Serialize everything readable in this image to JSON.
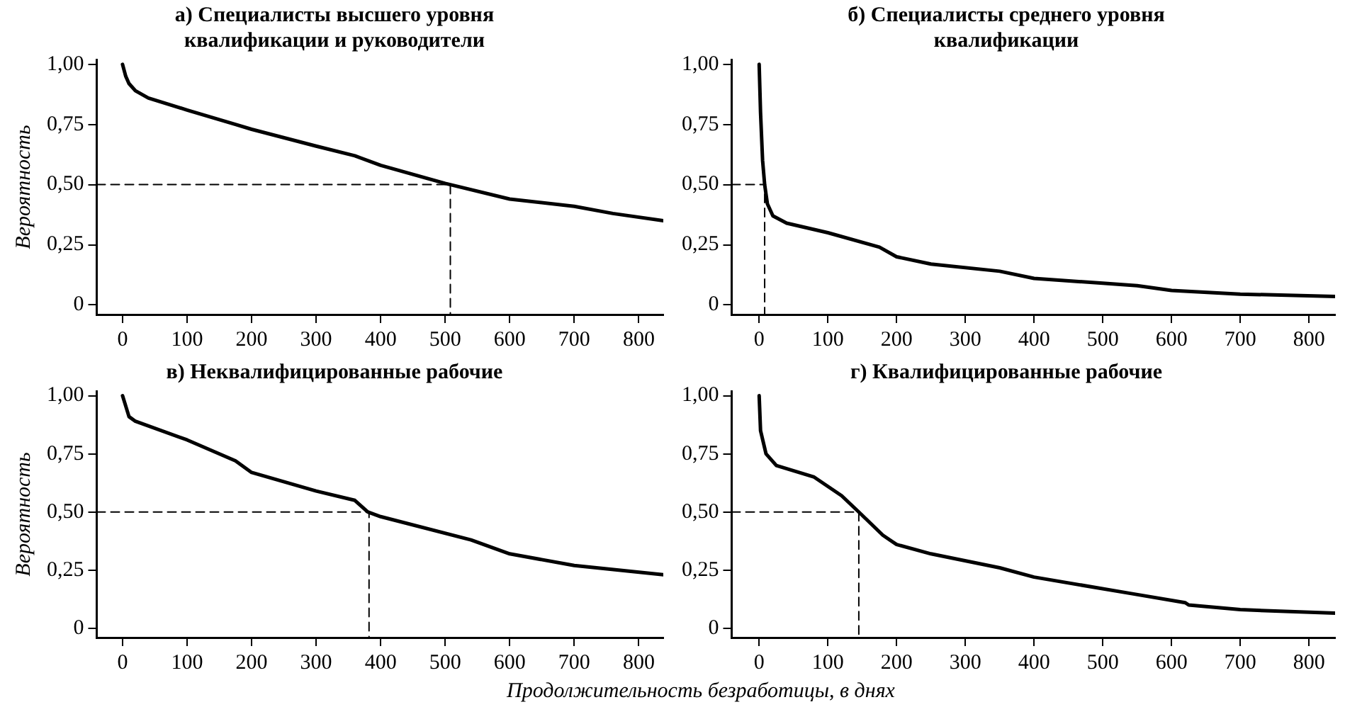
{
  "chart_data": [
    {
      "type": "line",
      "title": "а) Специалисты высшего уровня квалификации и руководители",
      "ylabel": "Вероятность",
      "xlim": [
        -40,
        838
      ],
      "ylim": [
        -0.04,
        1.02
      ],
      "xticks": [
        0,
        100,
        200,
        300,
        400,
        500,
        600,
        700,
        800
      ],
      "yticks": [
        {
          "value": 0,
          "label": "0"
        },
        {
          "value": 0.25,
          "label": "0,25"
        },
        {
          "value": 0.5,
          "label": "0,50"
        },
        {
          "value": 0.75,
          "label": "0,75"
        },
        {
          "value": 1,
          "label": "1,00"
        }
      ],
      "grid": false,
      "legend": false,
      "marker": "none",
      "line_style": "solid",
      "series": [
        {
          "color": "#000000",
          "x": [
            0,
            5,
            10,
            20,
            40,
            100,
            175,
            200,
            300,
            360,
            400,
            500,
            600,
            700,
            760,
            838
          ],
          "values": [
            1.0,
            0.95,
            0.92,
            0.89,
            0.86,
            0.81,
            0.75,
            0.73,
            0.66,
            0.62,
            0.58,
            0.505,
            0.44,
            0.41,
            0.38,
            0.35
          ]
        },
        {
          "color": "#000000",
          "line_style": "dashed",
          "x": [
            -40,
            508,
            508
          ],
          "values": [
            0.5,
            0.5,
            -0.04
          ]
        }
      ]
    },
    {
      "type": "line",
      "title": "б) Специалисты среднего уровня квалификации",
      "xlim": [
        -40,
        838
      ],
      "ylim": [
        -0.04,
        1.02
      ],
      "xticks": [
        0,
        100,
        200,
        300,
        400,
        500,
        600,
        700,
        800
      ],
      "yticks": [
        {
          "value": 0,
          "label": "0"
        },
        {
          "value": 0.25,
          "label": "0,25"
        },
        {
          "value": 0.5,
          "label": "0,50"
        },
        {
          "value": 0.75,
          "label": "0,75"
        },
        {
          "value": 1,
          "label": "1,00"
        }
      ],
      "grid": false,
      "legend": false,
      "marker": "none",
      "line_style": "solid",
      "series": [
        {
          "color": "#000000",
          "x": [
            0,
            2,
            5,
            8,
            12,
            20,
            40,
            100,
            175,
            200,
            250,
            350,
            400,
            500,
            550,
            600,
            700,
            838
          ],
          "values": [
            1.0,
            0.8,
            0.6,
            0.5,
            0.42,
            0.37,
            0.34,
            0.3,
            0.24,
            0.2,
            0.17,
            0.14,
            0.11,
            0.09,
            0.08,
            0.06,
            0.045,
            0.035
          ]
        },
        {
          "color": "#000000",
          "line_style": "dashed",
          "x": [
            -40,
            8,
            8
          ],
          "values": [
            0.5,
            0.5,
            -0.04
          ]
        }
      ]
    },
    {
      "type": "line",
      "title": "в) Неквалифицированные рабочие",
      "ylabel": "Вероятность",
      "xlabel": "Продолжительность безработицы, в днях",
      "xlim": [
        -40,
        838
      ],
      "ylim": [
        -0.04,
        1.02
      ],
      "xticks": [
        0,
        100,
        200,
        300,
        400,
        500,
        600,
        700,
        800
      ],
      "yticks": [
        {
          "value": 0,
          "label": "0"
        },
        {
          "value": 0.25,
          "label": "0,25"
        },
        {
          "value": 0.5,
          "label": "0,50"
        },
        {
          "value": 0.75,
          "label": "0,75"
        },
        {
          "value": 1,
          "label": "1,00"
        }
      ],
      "grid": false,
      "legend": false,
      "marker": "none",
      "line_style": "solid",
      "series": [
        {
          "color": "#000000",
          "x": [
            0,
            10,
            20,
            100,
            175,
            200,
            300,
            360,
            380,
            400,
            540,
            600,
            700,
            838
          ],
          "values": [
            1.0,
            0.91,
            0.89,
            0.81,
            0.72,
            0.67,
            0.59,
            0.55,
            0.5,
            0.48,
            0.38,
            0.32,
            0.27,
            0.23
          ]
        },
        {
          "color": "#000000",
          "line_style": "dashed",
          "x": [
            -40,
            382,
            382
          ],
          "values": [
            0.5,
            0.5,
            -0.04
          ]
        }
      ]
    },
    {
      "type": "line",
      "title": "г) Квалифицированные рабочие",
      "xlim": [
        -40,
        838
      ],
      "ylim": [
        -0.04,
        1.02
      ],
      "xticks": [
        0,
        100,
        200,
        300,
        400,
        500,
        600,
        700,
        800
      ],
      "yticks": [
        {
          "value": 0,
          "label": "0"
        },
        {
          "value": 0.25,
          "label": "0,25"
        },
        {
          "value": 0.5,
          "label": "0,50"
        },
        {
          "value": 0.75,
          "label": "0,75"
        },
        {
          "value": 1,
          "label": "1,00"
        }
      ],
      "grid": false,
      "legend": false,
      "marker": "none",
      "line_style": "solid",
      "series": [
        {
          "color": "#000000",
          "x": [
            0,
            2,
            10,
            25,
            80,
            120,
            145,
            180,
            200,
            250,
            350,
            400,
            540,
            620,
            625,
            700,
            838
          ],
          "values": [
            1.0,
            0.85,
            0.75,
            0.7,
            0.65,
            0.57,
            0.5,
            0.4,
            0.36,
            0.32,
            0.26,
            0.22,
            0.15,
            0.11,
            0.1,
            0.08,
            0.065
          ]
        },
        {
          "color": "#000000",
          "line_style": "dashed",
          "x": [
            -40,
            145,
            145
          ],
          "values": [
            0.5,
            0.5,
            -0.04
          ]
        }
      ]
    }
  ]
}
